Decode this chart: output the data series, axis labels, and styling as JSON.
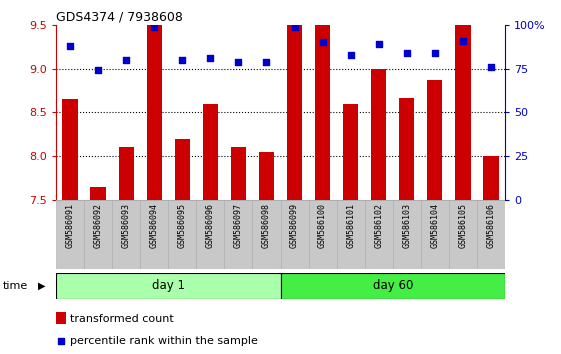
{
  "title": "GDS4374 / 7938608",
  "samples": [
    "GSM586091",
    "GSM586092",
    "GSM586093",
    "GSM586094",
    "GSM586095",
    "GSM586096",
    "GSM586097",
    "GSM586098",
    "GSM586099",
    "GSM586100",
    "GSM586101",
    "GSM586102",
    "GSM586103",
    "GSM586104",
    "GSM586105",
    "GSM586106"
  ],
  "bar_values": [
    8.65,
    7.65,
    8.1,
    9.5,
    8.2,
    8.6,
    8.1,
    8.05,
    9.5,
    9.5,
    8.6,
    9.0,
    8.67,
    8.87,
    9.5,
    8.0
  ],
  "percentile_values": [
    88,
    74,
    80,
    99,
    80,
    81,
    79,
    79,
    99,
    90,
    83,
    89,
    84,
    84,
    91,
    76
  ],
  "bar_color": "#cc0000",
  "percentile_color": "#0000cc",
  "ylim_left": [
    7.5,
    9.5
  ],
  "ylim_right": [
    0,
    100
  ],
  "yticks_left": [
    7.5,
    8.0,
    8.5,
    9.0,
    9.5
  ],
  "yticks_right": [
    0,
    25,
    50,
    75,
    100
  ],
  "day1_samples": 8,
  "day1_label": "day 1",
  "day60_label": "day 60",
  "day1_color": "#aaffaa",
  "day60_color": "#44ee44",
  "right_axis_color": "#0000cc",
  "left_axis_color": "#cc0000",
  "bar_bottom": 7.5,
  "legend_bar_label": "transformed count",
  "legend_pct_label": "percentile rank within the sample"
}
